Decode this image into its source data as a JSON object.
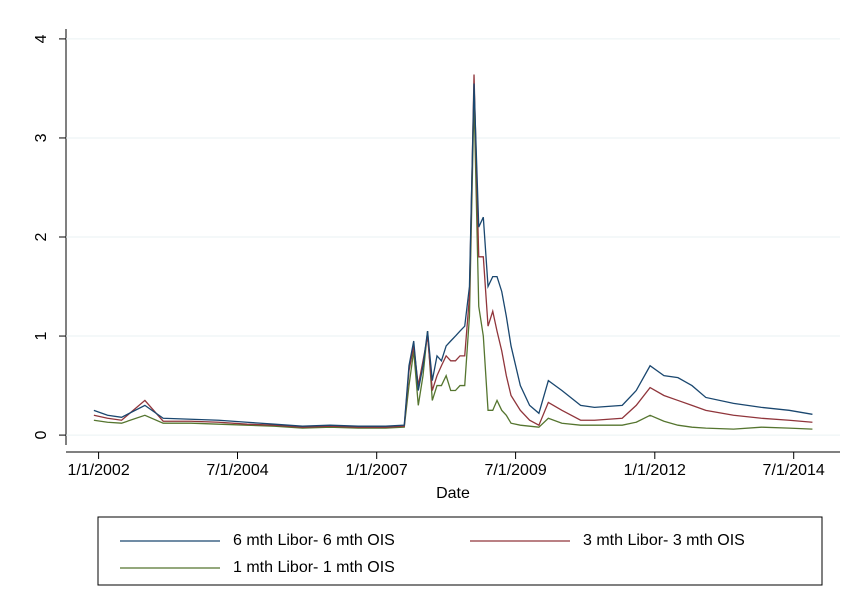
{
  "chart_data": {
    "type": "line",
    "x_label": "Date",
    "x": [
      "12/1/2001",
      "3/1/2002",
      "6/1/2002",
      "11/1/2002",
      "3/1/2003",
      "9/1/2003",
      "3/1/2004",
      "9/1/2004",
      "3/1/2005",
      "9/1/2005",
      "3/1/2006",
      "9/1/2006",
      "3/1/2007",
      "7/1/2007",
      "8/1/2007",
      "9/1/2007",
      "10/1/2007",
      "11/1/2007",
      "12/1/2007",
      "1/1/2008",
      "2/1/2008",
      "3/1/2008",
      "4/1/2008",
      "5/1/2008",
      "6/1/2008",
      "7/1/2008",
      "8/1/2008",
      "9/1/2008",
      "10/1/2008",
      "11/1/2008",
      "12/1/2008",
      "1/1/2009",
      "2/1/2009",
      "3/1/2009",
      "4/1/2009",
      "5/1/2009",
      "6/1/2009",
      "8/1/2009",
      "10/1/2009",
      "12/1/2009",
      "2/1/2010",
      "5/1/2010",
      "9/1/2010",
      "12/1/2010",
      "6/1/2011",
      "9/1/2011",
      "12/1/2011",
      "3/1/2012",
      "6/1/2012",
      "9/1/2012",
      "12/1/2012",
      "6/1/2013",
      "12/1/2013",
      "6/1/2014",
      "11/1/2014"
    ],
    "series": [
      {
        "name": "6 mth Libor- 6 mth OIS",
        "color": "#1a476f",
        "values": [
          0.25,
          0.2,
          0.18,
          0.3,
          0.17,
          0.16,
          0.15,
          0.13,
          0.11,
          0.09,
          0.1,
          0.09,
          0.09,
          0.1,
          0.7,
          0.95,
          0.45,
          0.7,
          1.05,
          0.55,
          0.8,
          0.75,
          0.9,
          0.95,
          1.0,
          1.05,
          1.1,
          1.5,
          3.55,
          2.1,
          2.2,
          1.5,
          1.6,
          1.6,
          1.45,
          1.2,
          0.9,
          0.5,
          0.3,
          0.22,
          0.55,
          0.45,
          0.3,
          0.28,
          0.3,
          0.45,
          0.7,
          0.6,
          0.58,
          0.5,
          0.38,
          0.32,
          0.28,
          0.25,
          0.21
        ]
      },
      {
        "name": "3 mth Libor- 3 mth OIS",
        "color": "#90353b",
        "values": [
          0.2,
          0.17,
          0.15,
          0.35,
          0.14,
          0.14,
          0.13,
          0.11,
          0.1,
          0.08,
          0.09,
          0.08,
          0.08,
          0.09,
          0.65,
          0.9,
          0.5,
          0.75,
          1.0,
          0.45,
          0.6,
          0.7,
          0.8,
          0.75,
          0.75,
          0.8,
          0.8,
          1.4,
          3.64,
          1.8,
          1.8,
          1.1,
          1.25,
          1.05,
          0.85,
          0.6,
          0.4,
          0.25,
          0.15,
          0.1,
          0.33,
          0.25,
          0.15,
          0.15,
          0.17,
          0.3,
          0.48,
          0.4,
          0.35,
          0.3,
          0.25,
          0.2,
          0.17,
          0.15,
          0.13
        ]
      },
      {
        "name": "1 mth Libor- 1 mth OIS",
        "color": "#55752f",
        "values": [
          0.15,
          0.13,
          0.12,
          0.2,
          0.12,
          0.12,
          0.11,
          0.1,
          0.09,
          0.07,
          0.08,
          0.07,
          0.07,
          0.08,
          0.5,
          0.85,
          0.3,
          0.6,
          1.05,
          0.35,
          0.5,
          0.5,
          0.6,
          0.45,
          0.45,
          0.5,
          0.5,
          1.2,
          3.4,
          1.3,
          1.0,
          0.25,
          0.25,
          0.35,
          0.25,
          0.2,
          0.12,
          0.1,
          0.09,
          0.08,
          0.17,
          0.12,
          0.1,
          0.1,
          0.1,
          0.13,
          0.2,
          0.14,
          0.1,
          0.08,
          0.07,
          0.06,
          0.08,
          0.07,
          0.06
        ]
      }
    ],
    "xlim": [
      "6/1/2001",
      "5/1/2015"
    ],
    "xticks": [
      "1/1/2002",
      "7/1/2004",
      "1/1/2007",
      "7/1/2009",
      "1/1/2012",
      "7/1/2014"
    ],
    "ylim": [
      -0.1,
      4.1
    ],
    "yticks": [
      0,
      1,
      2,
      3,
      4
    ],
    "grid": true,
    "legend": "bottom"
  }
}
